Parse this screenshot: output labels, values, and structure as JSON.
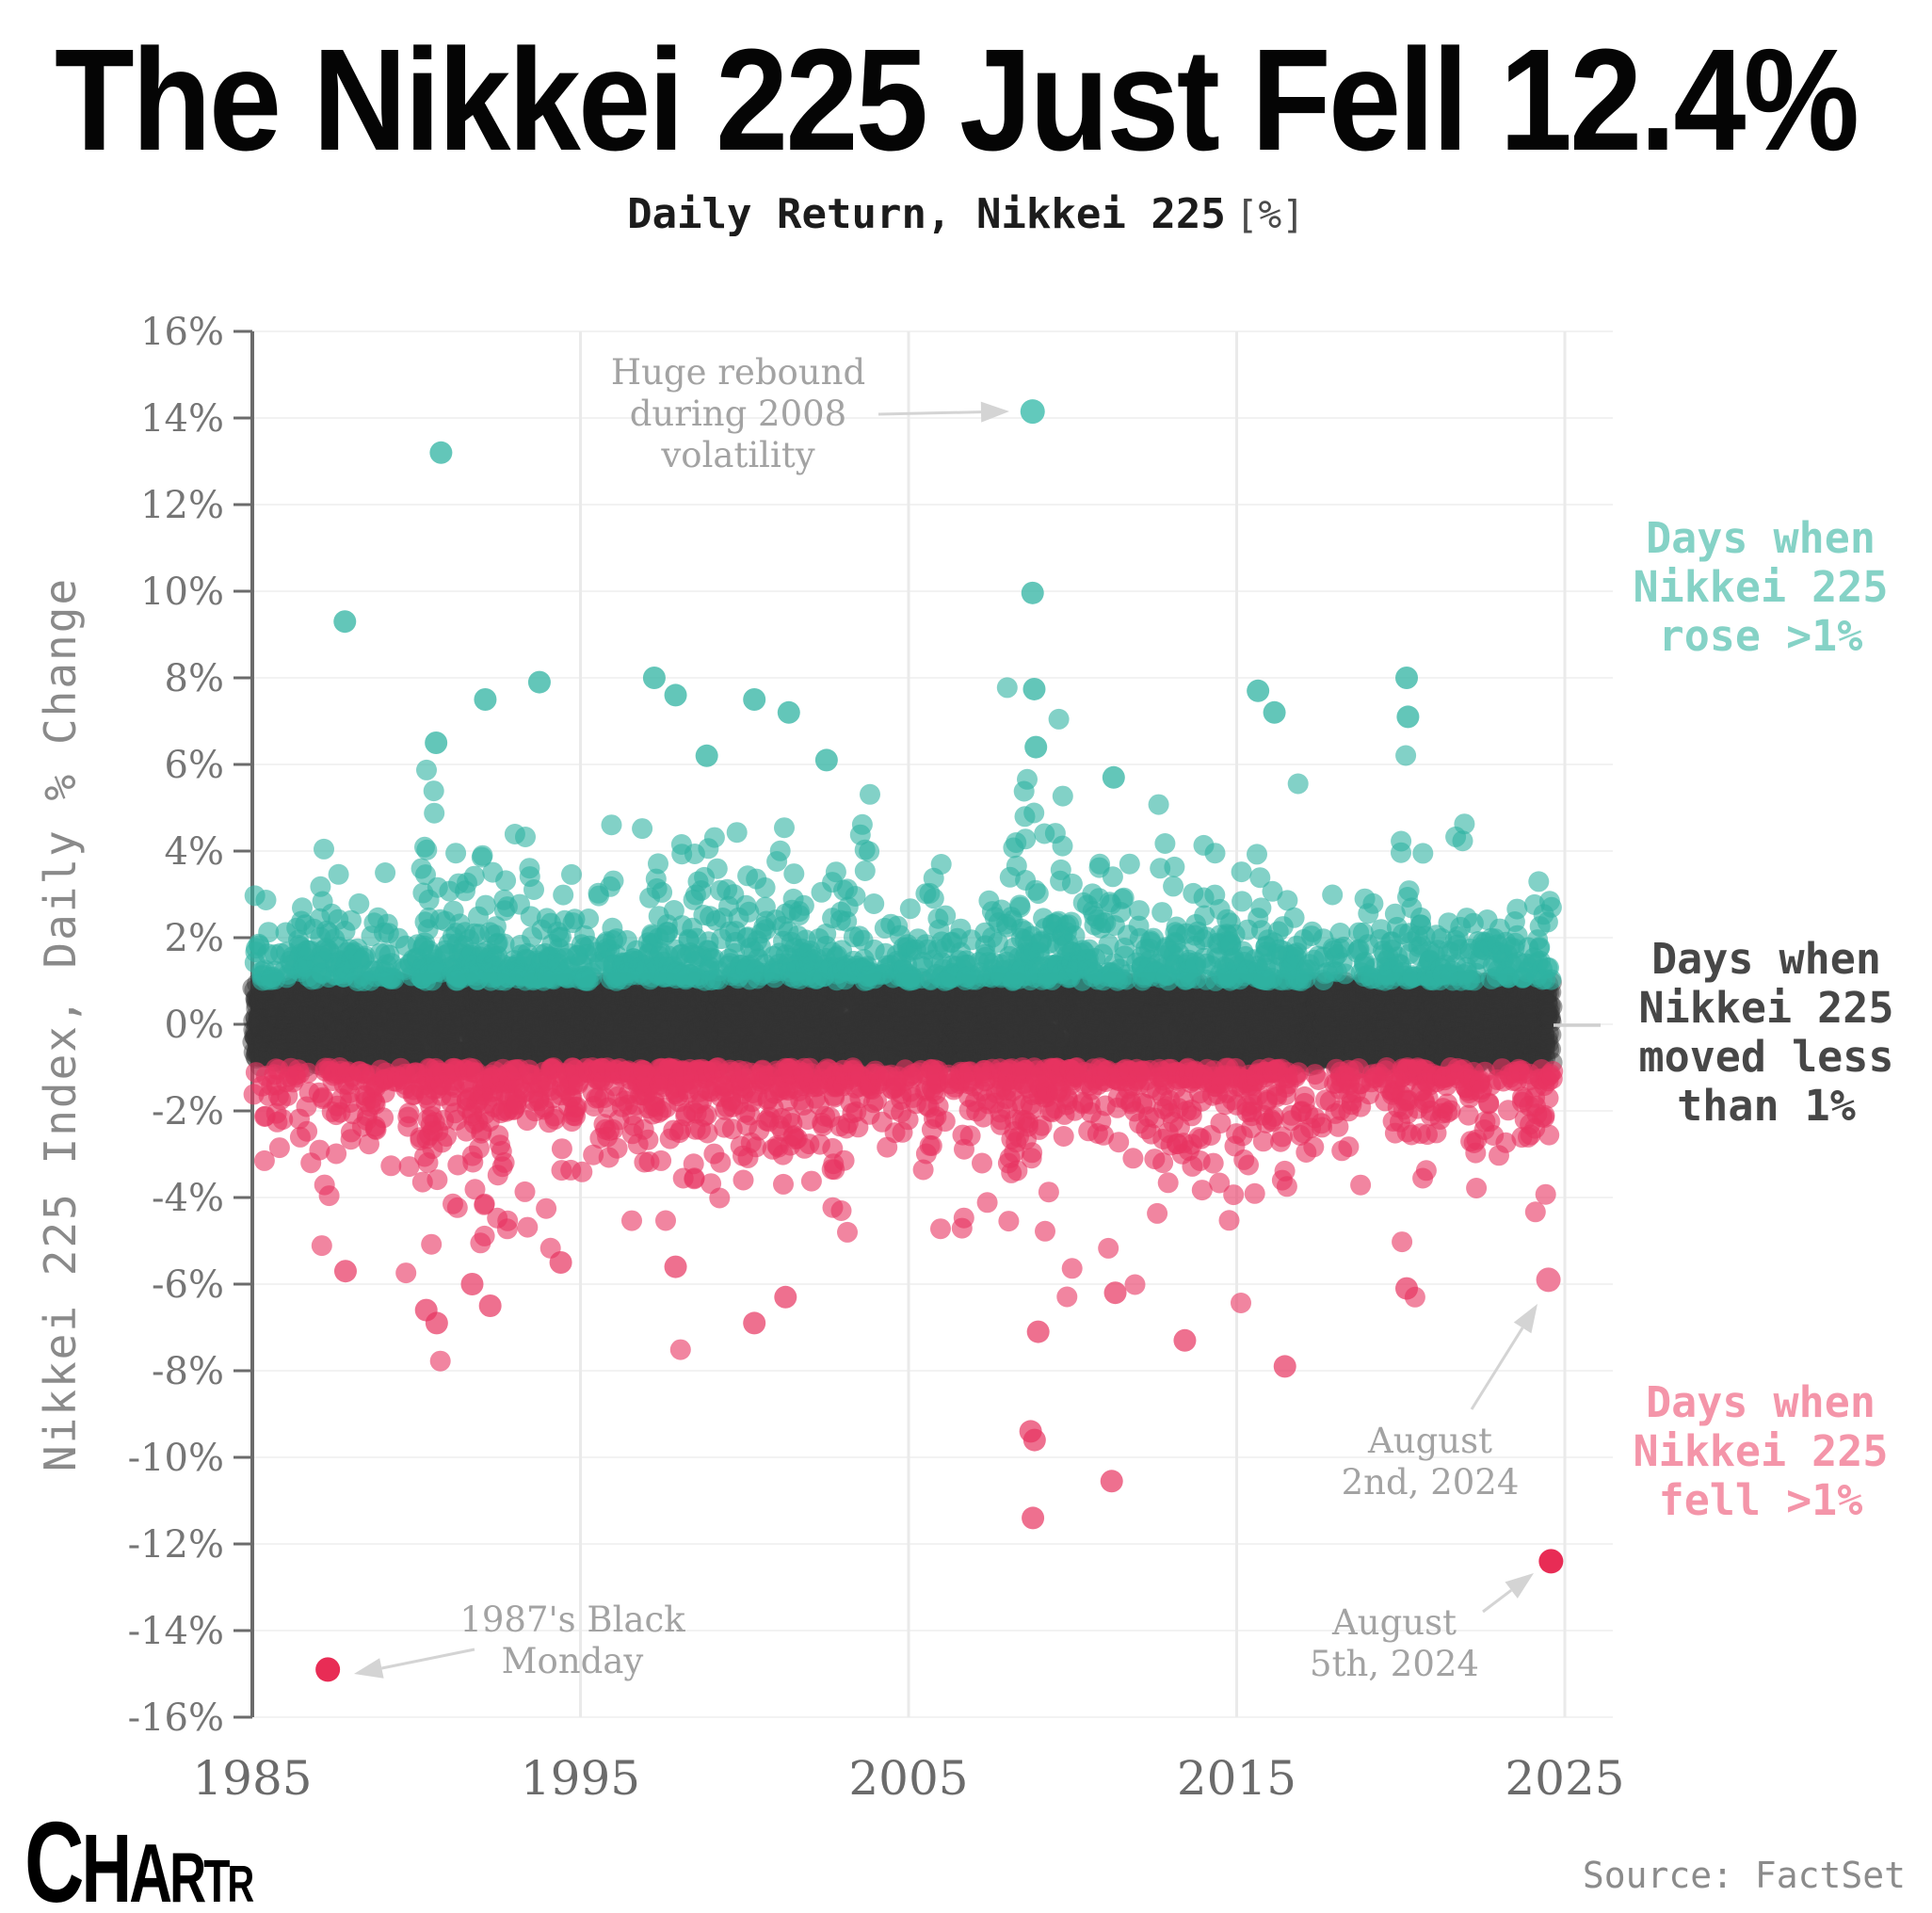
{
  "title": {
    "text": "The Nikkei 225 Just Fell 12.4%"
  },
  "subtitle": {
    "text": "Daily Return, Nikkei 225",
    "unit": "[%]"
  },
  "y_axis": {
    "label": "Nikkei 225 Index, Daily % Change",
    "tick_labels": [
      "16%",
      "14%",
      "12%",
      "10%",
      "8%",
      "6%",
      "4%",
      "2%",
      "0%",
      "-2%",
      "-4%",
      "-6%",
      "-8%",
      "-10%",
      "-12%",
      "-14%",
      "-16%"
    ],
    "tick_values": [
      16,
      14,
      12,
      10,
      8,
      6,
      4,
      2,
      0,
      -2,
      -4,
      -6,
      -8,
      -10,
      -12,
      -14,
      -16
    ]
  },
  "x_axis": {
    "tick_labels": [
      "1985",
      "1995",
      "2005",
      "2015",
      "2025"
    ],
    "tick_values": [
      1985,
      1995,
      2005,
      2015,
      2025
    ]
  },
  "legend": [
    {
      "id": "rose",
      "color": "#85d2c6",
      "lines": [
        "Days when",
        "Nikkei 225",
        "rose >1%"
      ]
    },
    {
      "id": "flat",
      "color": "#474747",
      "lines": [
        "Days when",
        "Nikkei 225",
        "moved less",
        "than 1%"
      ]
    },
    {
      "id": "fell",
      "color": "#f495a9",
      "lines": [
        "Days when",
        "Nikkei 225",
        "fell >1%"
      ]
    }
  ],
  "annotations": [
    {
      "id": "huge_rebound",
      "lines": [
        "Huge rebound",
        "during 2008",
        "volatility"
      ]
    },
    {
      "id": "black_monday",
      "lines": [
        "1987's Black",
        "Monday"
      ]
    },
    {
      "id": "aug2",
      "lines": [
        "August",
        "2nd, 2024"
      ]
    },
    {
      "id": "aug5",
      "lines": [
        "August",
        "5th, 2024"
      ]
    }
  ],
  "footer": {
    "logo_letters": [
      "C",
      "H",
      "A",
      "R",
      "T",
      "R"
    ],
    "source": "Source: FactSet"
  },
  "colors": {
    "rose_dot": "#2fb3a2",
    "flat_dot": "#333333",
    "fell_dot": "#e73360",
    "highlight_red": "#e82c55",
    "rebound_teal": "#62c9bc",
    "aug2_pink": "#ef7e9b",
    "annotation_text": "#a3a3a3",
    "arrow": "#d4d4d4",
    "axis": "#6b6b6b",
    "tick_text": "#757575",
    "x_tick_text": "#6b6b6b",
    "y_label_text": "#8a8a8a",
    "grid_h": "#f2f2f2",
    "grid_v": "#eaeaea"
  },
  "chart_data": {
    "type": "scatter",
    "title": "Daily Return, Nikkei 225 [%]",
    "xlabel": "",
    "ylabel": "Nikkei 225 Index, Daily % Change",
    "xlim": [
      1985,
      2026.5
    ],
    "ylim": [
      -16,
      16
    ],
    "x_ticks": [
      1985,
      1995,
      2005,
      2015,
      2025
    ],
    "y_ticks": [
      16,
      14,
      12,
      10,
      8,
      6,
      4,
      2,
      0,
      -2,
      -4,
      -6,
      -8,
      -10,
      -12,
      -14,
      -16
    ],
    "grid": true,
    "legend_position": "right",
    "series": [
      {
        "name": "Days when Nikkei 225 rose >1%",
        "rule": "daily return > +1%",
        "color": "#2fb3a2"
      },
      {
        "name": "Days when Nikkei 225 moved less than 1%",
        "rule": "-1% <= daily return <= +1%",
        "color": "#333333"
      },
      {
        "name": "Days when Nikkei 225 fell >1%",
        "rule": "daily return < -1%",
        "color": "#e73360"
      }
    ],
    "key_points": [
      {
        "id": "black_monday",
        "label": "1987's Black Monday",
        "x": 1987.3,
        "y": -14.9,
        "color": "#e82c55"
      },
      {
        "id": "rebound_2008",
        "label": "Huge rebound during 2008 volatility",
        "x": 2008.78,
        "y": 14.15,
        "color": "#62c9bc"
      },
      {
        "id": "aug_2_2024",
        "label": "August 2nd, 2024",
        "x": 2024.5,
        "y": -5.9,
        "color": "#ef7e9b"
      },
      {
        "id": "aug_5_2024",
        "label": "August 5th, 2024",
        "x": 2024.58,
        "y": -12.4,
        "color": "#e82c55"
      }
    ],
    "outliers": {
      "rose": [
        [
          1987.82,
          9.3
        ],
        [
          1990.6,
          6.5
        ],
        [
          1990.75,
          13.2
        ],
        [
          1992.1,
          7.5
        ],
        [
          1993.75,
          7.9
        ],
        [
          1997.25,
          8.0
        ],
        [
          1997.9,
          7.6
        ],
        [
          1998.85,
          6.2
        ],
        [
          2000.3,
          7.5
        ],
        [
          2001.35,
          7.2
        ],
        [
          2002.5,
          6.1
        ],
        [
          2008.78,
          9.96
        ],
        [
          2008.83,
          7.74
        ],
        [
          2008.88,
          6.4
        ],
        [
          2011.25,
          5.7
        ],
        [
          2015.65,
          7.7
        ],
        [
          2016.15,
          7.2
        ],
        [
          2020.18,
          8.0
        ],
        [
          2020.22,
          7.1
        ]
      ],
      "fell": [
        [
          1987.84,
          -5.7
        ],
        [
          1990.3,
          -6.6
        ],
        [
          1990.62,
          -6.9
        ],
        [
          1991.7,
          -6.0
        ],
        [
          1992.25,
          -6.5
        ],
        [
          1994.4,
          -5.5
        ],
        [
          1997.9,
          -5.6
        ],
        [
          2000.3,
          -6.9
        ],
        [
          2001.25,
          -6.3
        ],
        [
          2008.72,
          -9.4
        ],
        [
          2008.79,
          -11.4
        ],
        [
          2008.84,
          -9.6
        ],
        [
          2008.95,
          -7.1
        ],
        [
          2011.19,
          -10.55
        ],
        [
          2011.3,
          -6.2
        ],
        [
          2013.42,
          -7.3
        ],
        [
          2016.47,
          -7.9
        ],
        [
          2020.18,
          -6.1
        ]
      ]
    },
    "point_cloud": {
      "description": "~9800 trading days 1985-2024; dense band |r|<1% dark, r>1% teal, r<-1% pink",
      "n": 9800,
      "x_start": 1985.03,
      "x_end": 2024.6,
      "seed": 20240805,
      "era_volatility": [
        [
          1985,
          0.75
        ],
        [
          1987,
          1.15
        ],
        [
          1988,
          0.8
        ],
        [
          1990,
          1.35
        ],
        [
          1993,
          1.0
        ],
        [
          1997,
          1.25
        ],
        [
          1999,
          1.05
        ],
        [
          2001,
          1.15
        ],
        [
          2004,
          0.85
        ],
        [
          2007,
          1.0
        ],
        [
          2008,
          1.5
        ],
        [
          2010,
          1.05
        ],
        [
          2012,
          1.1
        ],
        [
          2014,
          1.0
        ],
        [
          2016,
          1.05
        ],
        [
          2017,
          0.75
        ],
        [
          2020,
          1.25
        ],
        [
          2021,
          0.85
        ],
        [
          2024,
          1.05
        ]
      ],
      "tail_prob": 0.4,
      "tail_offset": 0.55,
      "tail_scale": 0.85,
      "core_scale": 1.05,
      "cap": 7.8
    }
  }
}
